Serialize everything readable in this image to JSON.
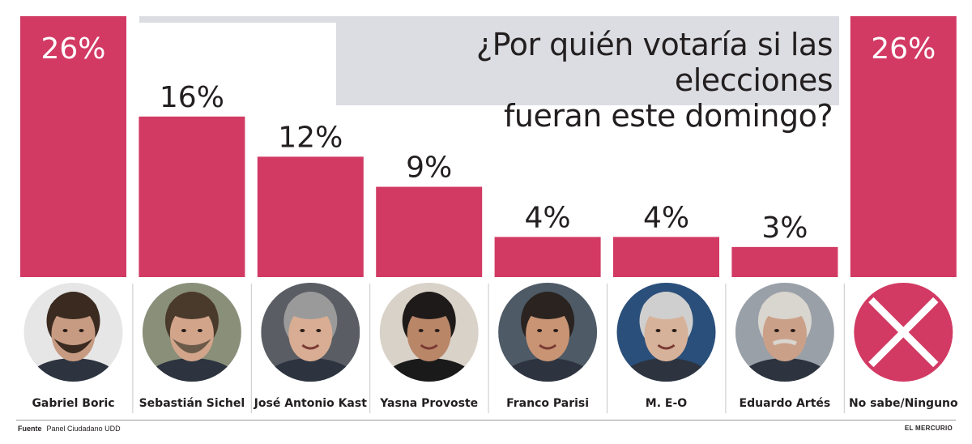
{
  "title": "¿Por quién votaría si las elecciones fueran este domingo?",
  "title_lines": [
    "¿Por quién votaría si las elecciones",
    "fueran este domingo?"
  ],
  "source_label": "Fuente",
  "source_text": "Panel Ciudadano UDD",
  "brand": "EL MERCURIO",
  "colors": {
    "bar": "#d23a64",
    "title_bg": "#dcdde2",
    "text": "#231f20",
    "label_on_bar": "#ffffff"
  },
  "chart_data": {
    "type": "bar",
    "categories": [
      "Gabriel Boric",
      "Sebastián Sichel",
      "José Antonio Kast",
      "Yasna Provoste",
      "Franco Parisi",
      "M. E-O",
      "Eduardo Artés",
      "No sabe/Ninguno"
    ],
    "values": [
      26,
      16,
      12,
      9,
      4,
      4,
      3,
      26
    ],
    "value_labels": [
      "26%",
      "16%",
      "12%",
      "9%",
      "4%",
      "4%",
      "3%",
      "26%"
    ],
    "title": "¿Por quién votaría si las elecciones fueran este domingo?",
    "xlabel": "",
    "ylabel": "",
    "ylim": [
      0,
      26
    ],
    "grid": false,
    "legend": "none"
  },
  "icons": [
    "boric-photo",
    "sichel-photo",
    "kast-photo",
    "provoste-photo",
    "parisi-photo",
    "meo-photo",
    "artes-photo",
    "x-mark-icon"
  ]
}
